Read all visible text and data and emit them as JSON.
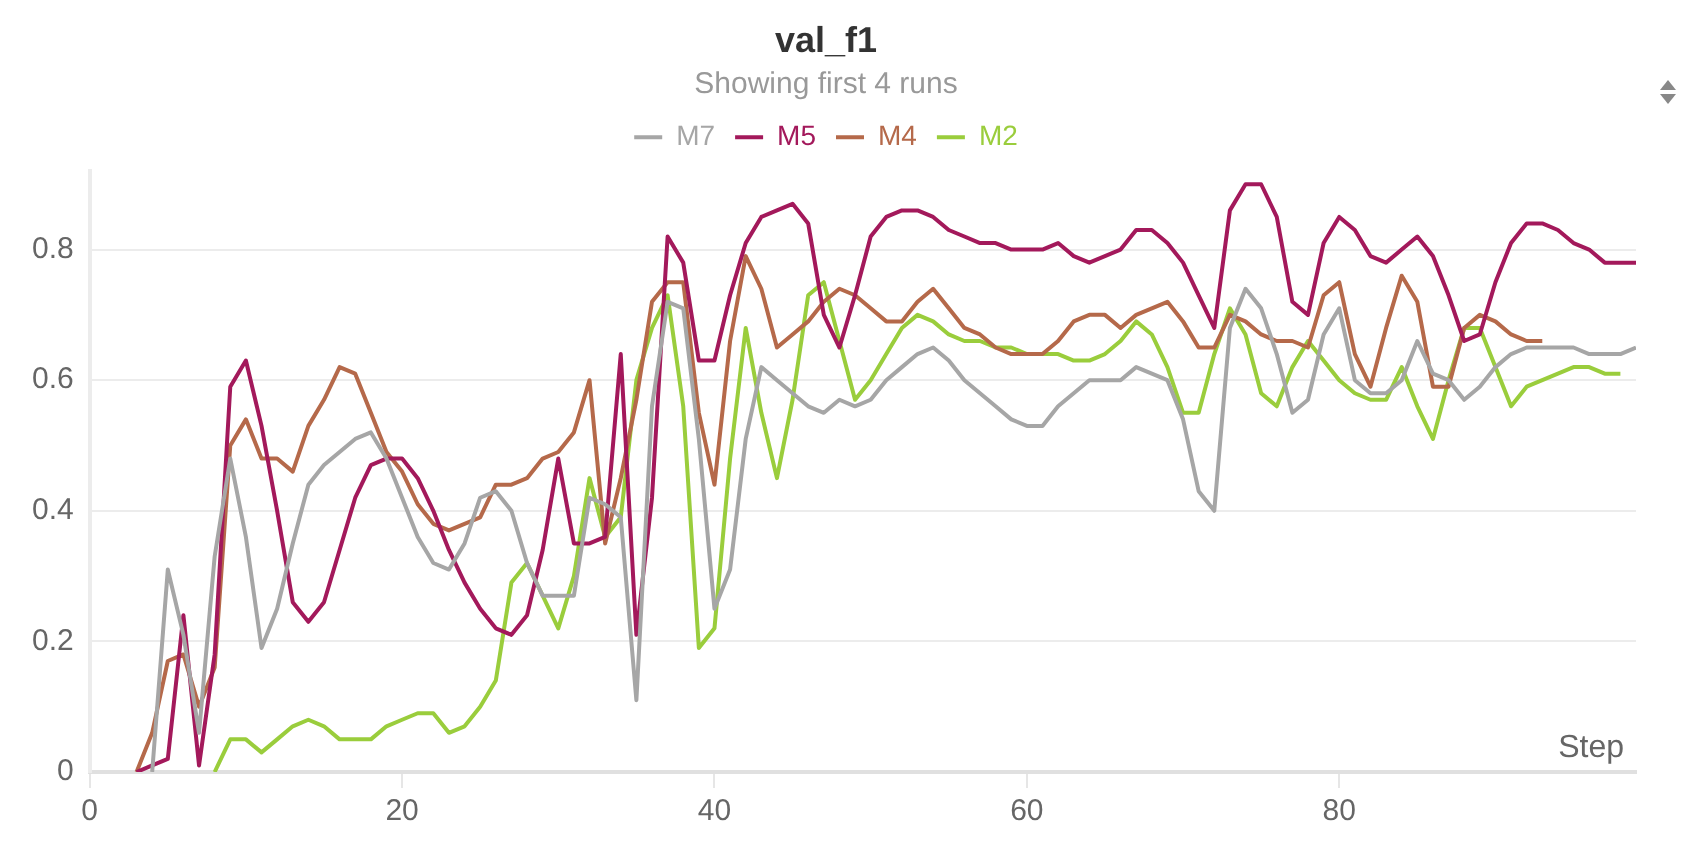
{
  "chart_data": {
    "type": "line",
    "title": "val_f1",
    "subtitle": "Showing first 4 runs",
    "xlabel": "Step",
    "x": [
      3,
      4,
      5,
      6,
      7,
      8,
      9,
      10,
      11,
      12,
      13,
      14,
      15,
      16,
      17,
      18,
      19,
      20,
      21,
      22,
      23,
      24,
      25,
      26,
      27,
      28,
      29,
      30,
      31,
      32,
      33,
      34,
      35,
      36,
      37,
      38,
      39,
      40,
      41,
      42,
      43,
      44,
      45,
      46,
      47,
      48,
      49,
      50,
      51,
      52,
      53,
      54,
      55,
      56,
      57,
      58,
      59,
      60,
      61,
      62,
      63,
      64,
      65,
      66,
      67,
      68,
      69,
      70,
      71,
      72,
      73,
      74,
      75,
      76,
      77,
      78,
      79,
      80,
      81,
      82,
      83,
      84,
      85,
      86,
      87,
      88,
      89,
      90,
      91,
      92,
      93,
      94,
      95,
      96,
      97,
      98,
      99
    ],
    "series": [
      {
        "name": "M7",
        "color": "#a6a6a6",
        "values": [
          null,
          0,
          0.31,
          0.21,
          0.06,
          0.33,
          0.48,
          0.36,
          0.19,
          0.25,
          0.35,
          0.44,
          0.47,
          0.49,
          0.51,
          0.52,
          0.48,
          0.42,
          0.36,
          0.32,
          0.31,
          0.35,
          0.42,
          0.43,
          0.4,
          0.32,
          0.27,
          0.27,
          0.27,
          0.42,
          0.41,
          0.39,
          0.11,
          0.56,
          0.72,
          0.71,
          0.51,
          0.25,
          0.31,
          0.51,
          0.62,
          0.6,
          0.58,
          0.56,
          0.55,
          0.57,
          0.56,
          0.57,
          0.6,
          0.62,
          0.64,
          0.65,
          0.63,
          0.6,
          0.58,
          0.56,
          0.54,
          0.53,
          0.53,
          0.56,
          0.58,
          0.6,
          0.6,
          0.6,
          0.62,
          0.61,
          0.6,
          0.54,
          0.43,
          0.4,
          0.68,
          0.74,
          0.71,
          0.64,
          0.55,
          0.57,
          0.67,
          0.71,
          0.6,
          0.58,
          0.58,
          0.6,
          0.66,
          0.61,
          0.6,
          0.57,
          0.59,
          0.62,
          0.64,
          0.65,
          0.65,
          0.65,
          0.65,
          0.64,
          0.64,
          0.64,
          0.65
        ]
      },
      {
        "name": "M5",
        "color": "#a3195b",
        "values": [
          0,
          0.01,
          0.02,
          0.24,
          0.01,
          0.18,
          0.59,
          0.63,
          0.53,
          0.4,
          0.26,
          0.23,
          0.26,
          0.34,
          0.42,
          0.47,
          0.48,
          0.48,
          0.45,
          0.4,
          0.34,
          0.29,
          0.25,
          0.22,
          0.21,
          0.24,
          0.34,
          0.48,
          0.35,
          0.35,
          0.36,
          0.64,
          0.21,
          0.42,
          0.82,
          0.78,
          0.63,
          0.63,
          0.73,
          0.81,
          0.85,
          0.86,
          0.87,
          0.84,
          0.7,
          0.65,
          0.73,
          0.82,
          0.85,
          0.86,
          0.86,
          0.85,
          0.83,
          0.82,
          0.81,
          0.81,
          0.8,
          0.8,
          0.8,
          0.81,
          0.79,
          0.78,
          0.79,
          0.8,
          0.83,
          0.83,
          0.81,
          0.78,
          0.73,
          0.68,
          0.86,
          0.9,
          0.9,
          0.85,
          0.72,
          0.7,
          0.81,
          0.85,
          0.83,
          0.79,
          0.78,
          0.8,
          0.82,
          0.79,
          0.73,
          0.66,
          0.67,
          0.75,
          0.81,
          0.84,
          0.84,
          0.83,
          0.81,
          0.8,
          0.78,
          0.78,
          0.78
        ]
      },
      {
        "name": "M4",
        "color": "#b5694a",
        "values": [
          0,
          0.06,
          0.17,
          0.18,
          0.1,
          0.16,
          0.5,
          0.54,
          0.48,
          0.48,
          0.46,
          0.53,
          0.57,
          0.62,
          0.61,
          0.55,
          0.49,
          0.46,
          0.41,
          0.38,
          0.37,
          0.38,
          0.39,
          0.44,
          0.44,
          0.45,
          0.48,
          0.49,
          0.52,
          0.6,
          0.35,
          0.45,
          0.57,
          0.72,
          0.75,
          0.75,
          0.55,
          0.44,
          0.66,
          0.79,
          0.74,
          0.65,
          0.67,
          0.69,
          0.72,
          0.74,
          0.73,
          0.71,
          0.69,
          0.69,
          0.72,
          0.74,
          0.71,
          0.68,
          0.67,
          0.65,
          0.64,
          0.64,
          0.64,
          0.66,
          0.69,
          0.7,
          0.7,
          0.68,
          0.7,
          0.71,
          0.72,
          0.69,
          0.65,
          0.65,
          0.7,
          0.69,
          0.67,
          0.66,
          0.66,
          0.65,
          0.73,
          0.75,
          0.64,
          0.59,
          0.68,
          0.76,
          0.72,
          0.59,
          0.59,
          0.68,
          0.7,
          0.69,
          0.67,
          0.66,
          0.66,
          null,
          null,
          null,
          null,
          null,
          null
        ]
      },
      {
        "name": "M2",
        "color": "#9acd3c",
        "values": [
          null,
          null,
          null,
          null,
          null,
          0,
          0.05,
          0.05,
          0.03,
          0.05,
          0.07,
          0.08,
          0.07,
          0.05,
          0.05,
          0.05,
          0.07,
          0.08,
          0.09,
          0.09,
          0.06,
          0.07,
          0.1,
          0.14,
          0.29,
          0.32,
          0.27,
          0.22,
          0.3,
          0.45,
          0.36,
          0.39,
          0.6,
          0.68,
          0.73,
          0.56,
          0.19,
          0.22,
          0.48,
          0.68,
          0.55,
          0.45,
          0.57,
          0.73,
          0.75,
          0.66,
          0.57,
          0.6,
          0.64,
          0.68,
          0.7,
          0.69,
          0.67,
          0.66,
          0.66,
          0.65,
          0.65,
          0.64,
          0.64,
          0.64,
          0.63,
          0.63,
          0.64,
          0.66,
          0.69,
          0.67,
          0.62,
          0.55,
          0.55,
          0.64,
          0.71,
          0.67,
          0.58,
          0.56,
          0.62,
          0.66,
          0.63,
          0.6,
          0.58,
          0.57,
          0.57,
          0.62,
          0.56,
          0.51,
          0.6,
          0.68,
          0.68,
          0.62,
          0.56,
          0.59,
          0.6,
          0.61,
          0.62,
          0.62,
          0.61,
          0.61,
          null
        ]
      }
    ],
    "xlim": [
      0,
      99
    ],
    "xticks": [
      0,
      20,
      40,
      60,
      80
    ],
    "ylim": [
      0,
      0.92
    ],
    "yticks": [
      0,
      0.2,
      0.4,
      0.6,
      0.8
    ],
    "grid": "y",
    "legend": "top"
  }
}
